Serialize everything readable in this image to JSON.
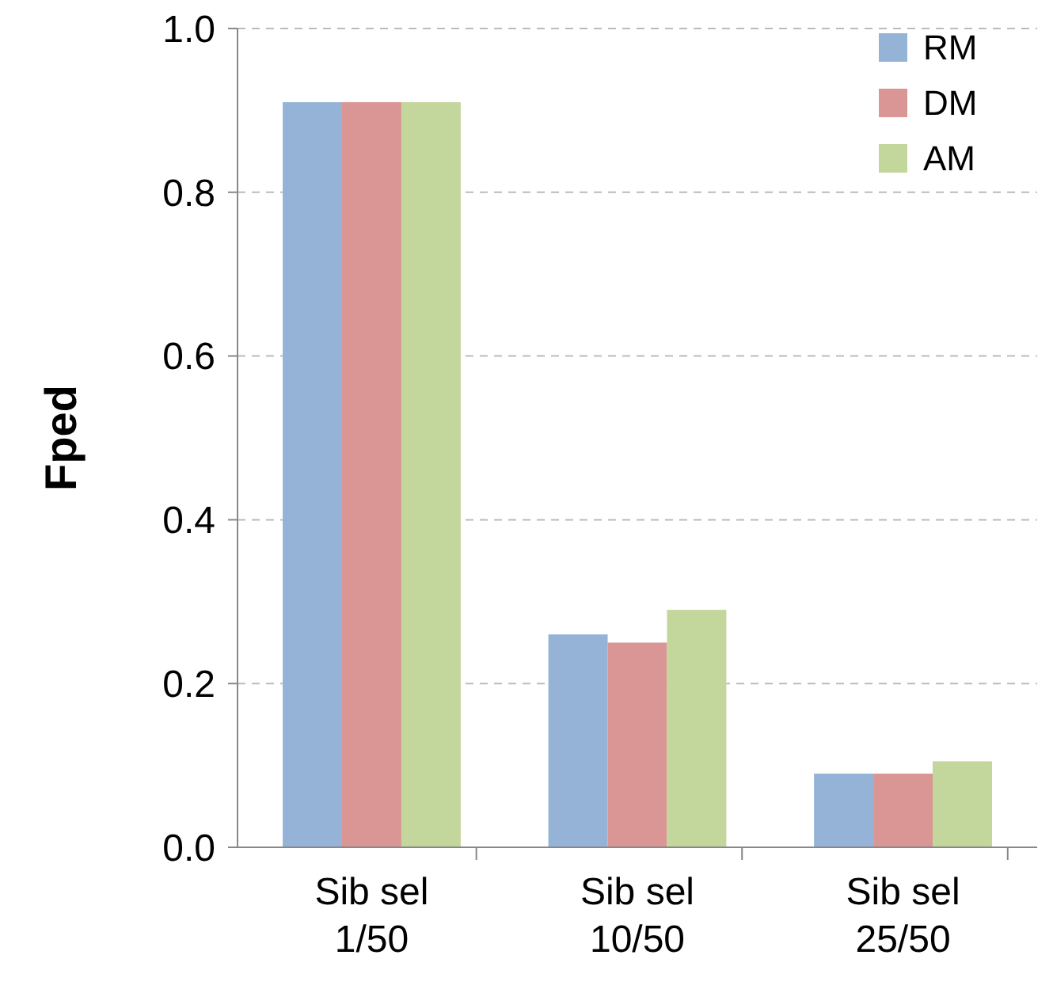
{
  "chart_data": {
    "type": "bar",
    "ylabel": "Fped",
    "categories": [
      "Sib sel\n1/50",
      "Sib sel\n10/50",
      "Sib sel\n25/50"
    ],
    "series": [
      {
        "name": "RM",
        "color": "#95b3d7",
        "values": [
          0.91,
          0.26,
          0.09
        ]
      },
      {
        "name": "DM",
        "color": "#d99694",
        "values": [
          0.91,
          0.25,
          0.09
        ]
      },
      {
        "name": "AM",
        "color": "#c3d69b",
        "values": [
          0.91,
          0.29,
          0.105
        ]
      }
    ],
    "ylim": [
      0,
      1
    ],
    "yticks": [
      {
        "value": 0,
        "label": "0.0"
      },
      {
        "value": 0.2,
        "label": "0.2"
      },
      {
        "value": 0.4,
        "label": "0.4"
      },
      {
        "value": 0.6,
        "label": "0.6"
      },
      {
        "value": 0.8,
        "label": "0.8"
      },
      {
        "value": 1,
        "label": "1.0"
      }
    ],
    "grid": "y",
    "legend": "top right"
  }
}
